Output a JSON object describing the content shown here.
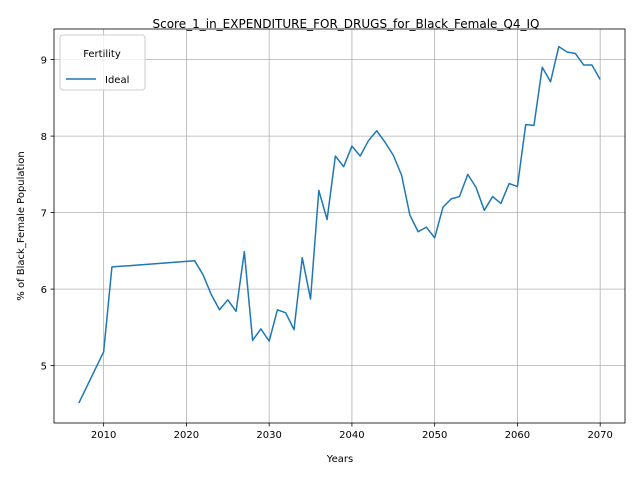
{
  "chart_data": {
    "type": "line",
    "title": "Score_1_in_EXPENDITURE_FOR_DRUGS_for_Black_Female_Q4_IQ",
    "xlabel": "Years",
    "ylabel": "% of Black_Female Population",
    "xlim": [
      2004,
      2073
    ],
    "ylim": [
      4.25,
      9.4
    ],
    "xticks": [
      2010,
      2020,
      2030,
      2040,
      2050,
      2060,
      2070
    ],
    "yticks": [
      5,
      6,
      7,
      8,
      9
    ],
    "grid": true,
    "legend": {
      "title": "Fertility",
      "position": "top-left"
    },
    "series": [
      {
        "name": "Ideal",
        "color": "#1f77b4",
        "x": [
          2007,
          2010,
          2011,
          2021,
          2022,
          2023,
          2024,
          2025,
          2026,
          2027,
          2028,
          2029,
          2030,
          2031,
          2032,
          2033,
          2034,
          2035,
          2036,
          2037,
          2038,
          2039,
          2040,
          2041,
          2042,
          2043,
          2044,
          2045,
          2046,
          2047,
          2048,
          2049,
          2050,
          2051,
          2052,
          2053,
          2054,
          2055,
          2056,
          2057,
          2058,
          2059,
          2060,
          2061,
          2062,
          2063,
          2064,
          2065,
          2066,
          2067,
          2068,
          2069,
          2070
        ],
        "y": [
          4.51,
          5.18,
          6.29,
          6.37,
          6.19,
          5.93,
          5.73,
          5.86,
          5.71,
          6.49,
          5.33,
          5.48,
          5.32,
          5.73,
          5.69,
          5.47,
          6.41,
          5.87,
          7.29,
          6.91,
          7.74,
          7.6,
          7.87,
          7.74,
          7.94,
          8.07,
          7.92,
          7.75,
          7.49,
          6.97,
          6.75,
          6.81,
          6.67,
          7.07,
          7.18,
          7.21,
          7.5,
          7.33,
          7.03,
          7.21,
          7.12,
          7.38,
          7.34,
          8.15,
          8.14,
          8.9,
          8.71,
          9.17,
          9.1,
          9.08,
          8.93,
          8.93,
          8.74
        ]
      }
    ]
  }
}
